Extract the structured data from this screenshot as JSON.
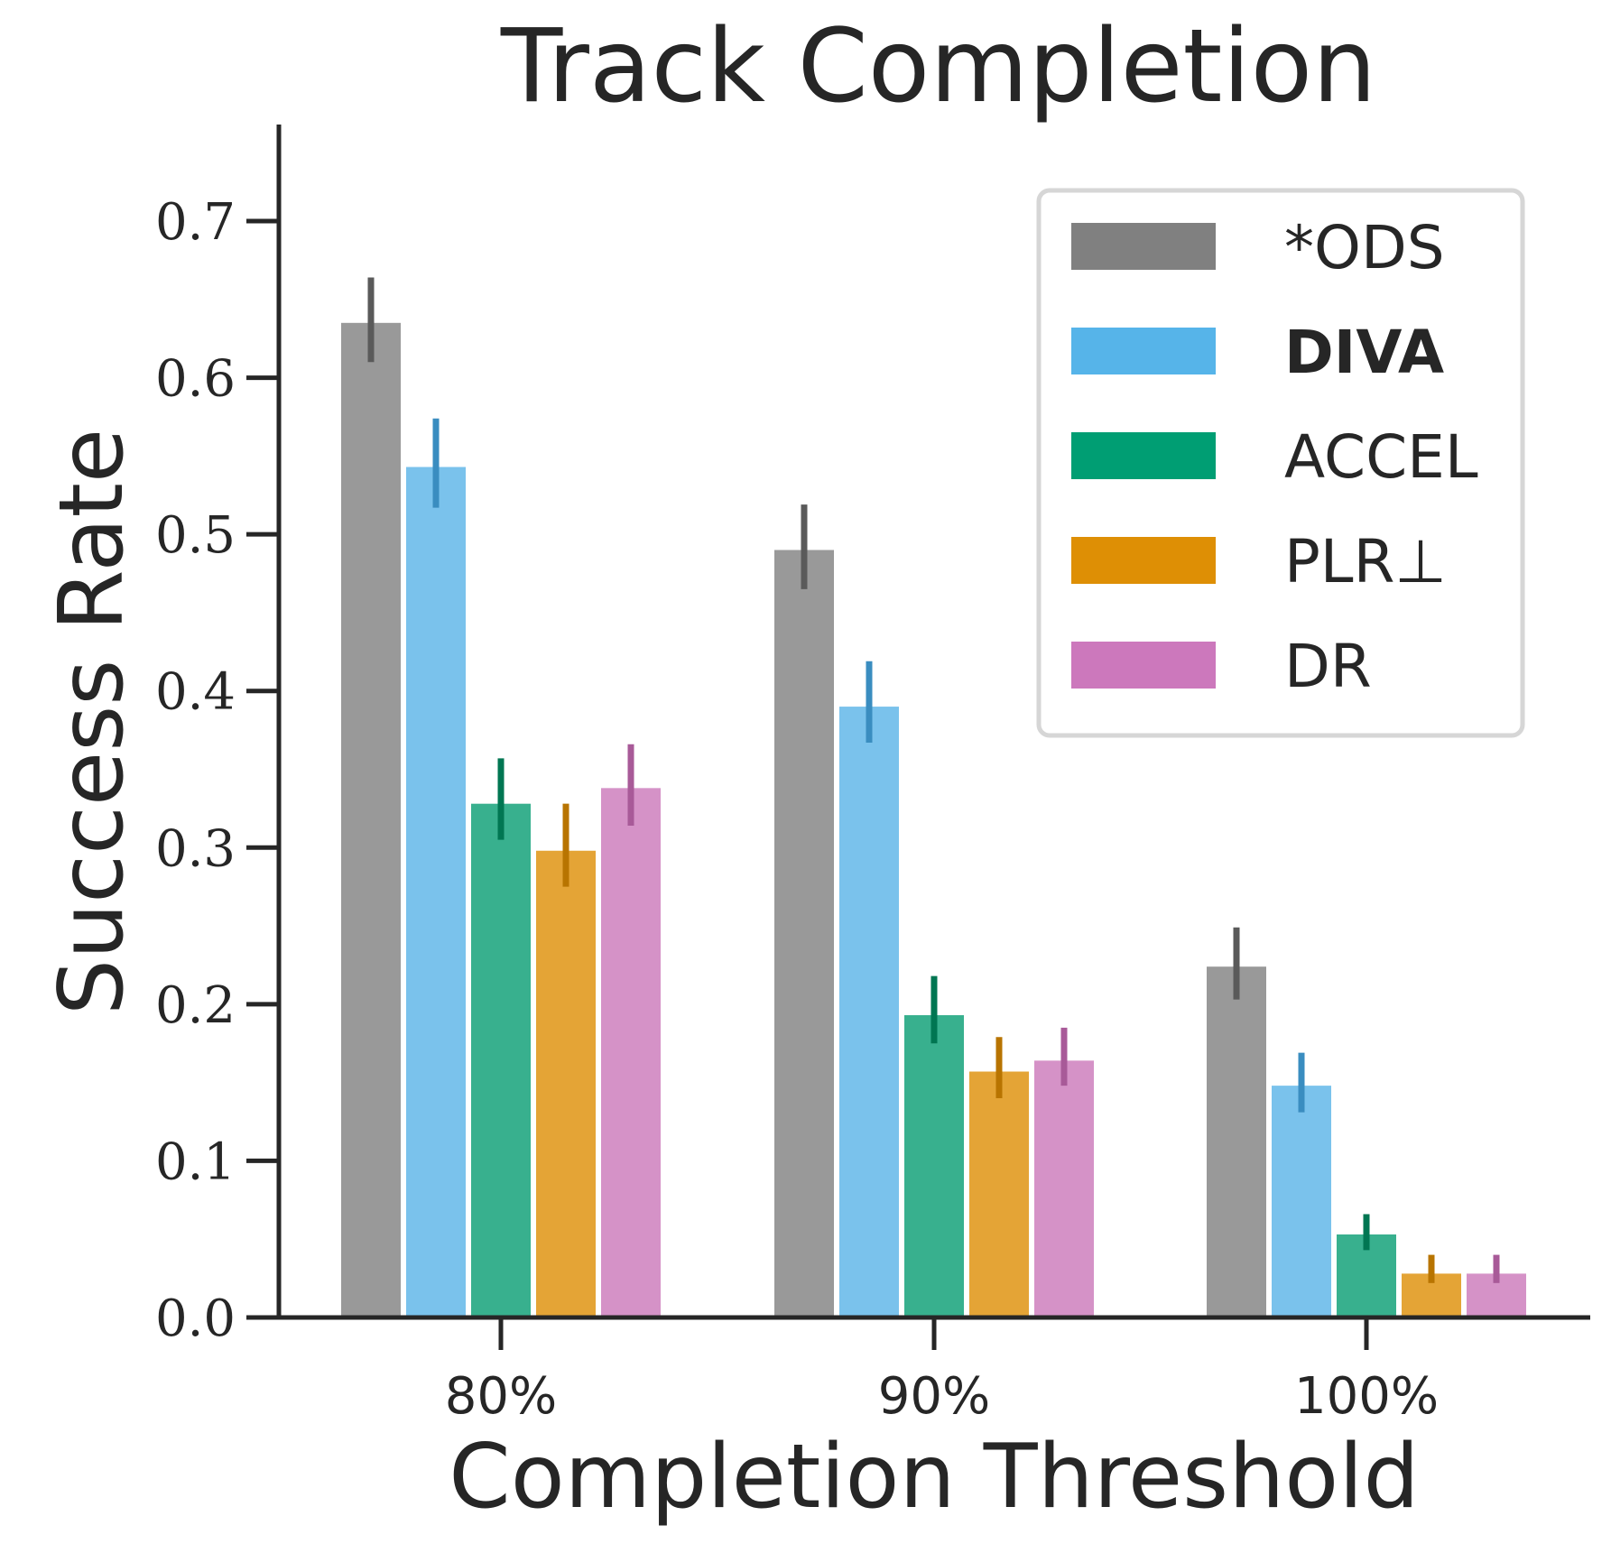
{
  "chart_data": {
    "type": "bar",
    "title": "Track Completion",
    "xlabel": "Completion Threshold",
    "ylabel": "Success Rate",
    "categories": [
      "80%",
      "90%",
      "100%"
    ],
    "ylim": [
      0,
      0.76
    ],
    "yticks": [
      0.0,
      0.1,
      0.2,
      0.3,
      0.4,
      0.5,
      0.6,
      0.7
    ],
    "ytick_labels": [
      "0.0",
      "0.1",
      "0.2",
      "0.3",
      "0.4",
      "0.5",
      "0.6",
      "0.7"
    ],
    "grid": false,
    "legend_position": "top-right",
    "series": [
      {
        "name": "*ODS",
        "color": "#999999",
        "legend_color": "#808080",
        "err_color": "#5a5a5a",
        "bold": false,
        "values": [
          0.635,
          0.49,
          0.224
        ],
        "err_low": [
          0.61,
          0.465,
          0.203
        ],
        "err_high": [
          0.664,
          0.519,
          0.249
        ]
      },
      {
        "name": "DIVA",
        "color": "#7ac2ec",
        "legend_color": "#56b4e9",
        "err_color": "#3a8dc0",
        "bold": true,
        "values": [
          0.543,
          0.39,
          0.148
        ],
        "err_low": [
          0.517,
          0.367,
          0.131
        ],
        "err_high": [
          0.574,
          0.419,
          0.169
        ]
      },
      {
        "name": "ACCEL",
        "color": "#38b08e",
        "legend_color": "#009e73",
        "err_color": "#007652",
        "bold": false,
        "values": [
          0.328,
          0.193,
          0.053
        ],
        "err_low": [
          0.305,
          0.175,
          0.043
        ],
        "err_high": [
          0.357,
          0.218,
          0.066
        ]
      },
      {
        "name": "PLR⊥",
        "color": "#e4a436",
        "legend_color": "#de8f05",
        "err_color": "#b87400",
        "bold": false,
        "values": [
          0.298,
          0.157,
          0.028
        ],
        "err_low": [
          0.275,
          0.14,
          0.022
        ],
        "err_high": [
          0.328,
          0.179,
          0.04
        ]
      },
      {
        "name": "DR",
        "color": "#d592c7",
        "legend_color": "#cc78bc",
        "err_color": "#a85a98",
        "bold": false,
        "values": [
          0.338,
          0.164,
          0.028
        ],
        "err_low": [
          0.314,
          0.148,
          0.022
        ],
        "err_high": [
          0.366,
          0.185,
          0.04
        ]
      }
    ]
  }
}
